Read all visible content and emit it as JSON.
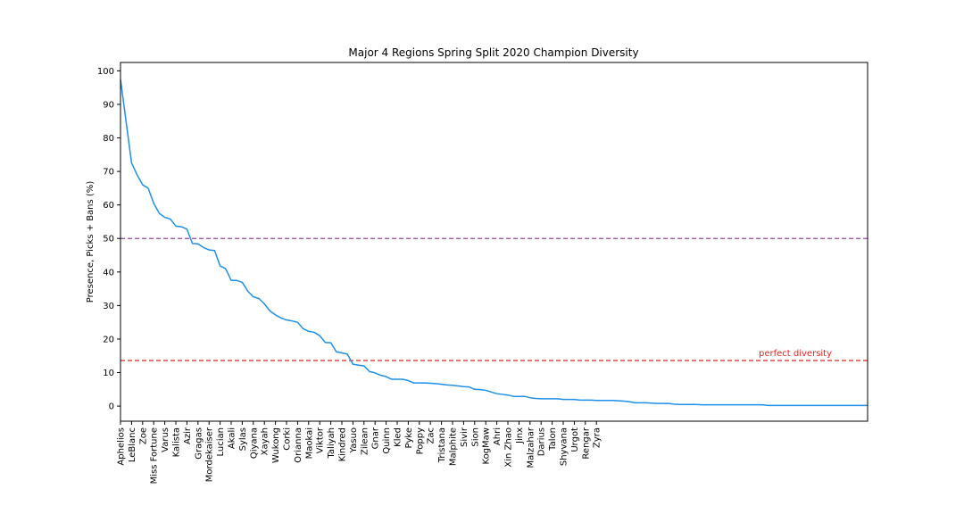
{
  "chart_data": {
    "type": "line",
    "title": "Major 4 Regions Spring Split 2020 Champion Diversity",
    "xlabel": "",
    "ylabel": "Presence, Picks + Bans (%)",
    "ylim": [
      -4.5,
      102.5
    ],
    "yticks": [
      0,
      10,
      20,
      30,
      40,
      50,
      60,
      70,
      80,
      90,
      100
    ],
    "grid": false,
    "colors": {
      "line": "#1f8fe8",
      "half_line": "#a040b0",
      "diversity_line": "#e8201a",
      "annotation": "#e8201a"
    },
    "x_labels": [
      "Aphelios",
      "LeBlanc",
      "Zoe",
      "Miss Fortune",
      "Varus",
      "Kalista",
      "Azir",
      "Gragas",
      "Mordekaiser",
      "Lucian",
      "Akali",
      "Sylas",
      "Qiyana",
      "Xayah",
      "Wukong",
      "Corki",
      "Orianna",
      "Maokai",
      "Viktor",
      "Taliyah",
      "Kindred",
      "Yasuo",
      "Zilean",
      "Gnar",
      "Quinn",
      "Kled",
      "Pyke",
      "Poppy",
      "Zac",
      "Tristana",
      "Malphite",
      "Sivir",
      "Sion",
      "KogMaw",
      "Ahri",
      "Xin Zhao",
      "Jinx",
      "Malzahar",
      "Darius",
      "Talon",
      "Shyvana",
      "Urgot",
      "Rengar",
      "Zyra"
    ],
    "num_points": 88,
    "values": [
      97.5,
      85,
      72.5,
      69,
      66,
      65,
      60.5,
      57.5,
      56.3,
      55.8,
      53.7,
      53.5,
      52.8,
      48.5,
      48.4,
      47.3,
      46.6,
      46.4,
      41.8,
      41,
      37.5,
      37.5,
      36.9,
      34.3,
      32.6,
      32.1,
      30.5,
      28.4,
      27.2,
      26.3,
      25.7,
      25.4,
      25,
      23.1,
      22.3,
      22,
      21,
      19,
      18.9,
      16.2,
      15.9,
      15.5,
      12.5,
      12.2,
      12,
      10.3,
      9.9,
      9.2,
      8.8,
      8,
      8,
      8,
      7.6,
      6.9,
      6.9,
      6.9,
      6.8,
      6.7,
      6.5,
      6.3,
      6.2,
      6,
      5.8,
      5.7,
      5,
      4.9,
      4.7,
      4.2,
      3.7,
      3.5,
      3.3,
      2.9,
      2.9,
      2.9,
      2.5,
      2.3,
      2.2,
      2.2,
      2.2,
      2.2,
      2.0,
      2.0,
      2.0,
      1.8,
      1.8,
      1.8,
      1.7,
      1.7
    ],
    "tail_values": [
      1.7,
      1.7,
      1.6,
      1.5,
      1.3,
      1.0,
      1.0,
      1.0,
      0.9,
      0.8,
      0.8,
      0.8,
      0.6,
      0.5,
      0.5,
      0.5,
      0.5,
      0.4,
      0.4,
      0.4,
      0.4,
      0.4,
      0.4,
      0.4,
      0.4,
      0.4,
      0.4,
      0.4,
      0.4,
      0.2,
      0.2,
      0.2,
      0.2,
      0.2,
      0.2,
      0.2,
      0.2,
      0.2,
      0.2,
      0.2,
      0.2,
      0.2,
      0.2,
      0.2,
      0.2,
      0.2,
      0.2,
      0.2
    ],
    "reference_lines": [
      {
        "y": 50,
        "style": "dashed",
        "color": "#a040b0",
        "label": ""
      },
      {
        "y": 13.6,
        "style": "dashed",
        "color": "#e8201a",
        "label": "perfect diversity"
      }
    ]
  }
}
